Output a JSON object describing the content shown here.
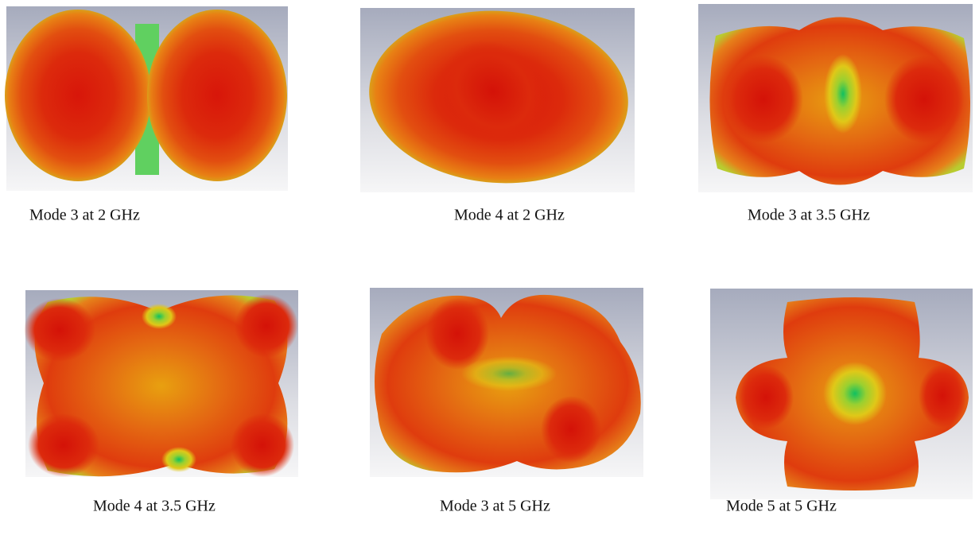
{
  "figure": {
    "panels": [
      {
        "caption": "Mode 3 at 2 GHz"
      },
      {
        "caption": "Mode 4 at 2 GHz"
      },
      {
        "caption": "Mode 3 at 3.5 GHz"
      },
      {
        "caption": "Mode 4 at 3.5 GHz"
      },
      {
        "caption": "Mode 3 at 5 GHz"
      },
      {
        "caption": "Mode 5 at 5 GHz"
      }
    ]
  }
}
